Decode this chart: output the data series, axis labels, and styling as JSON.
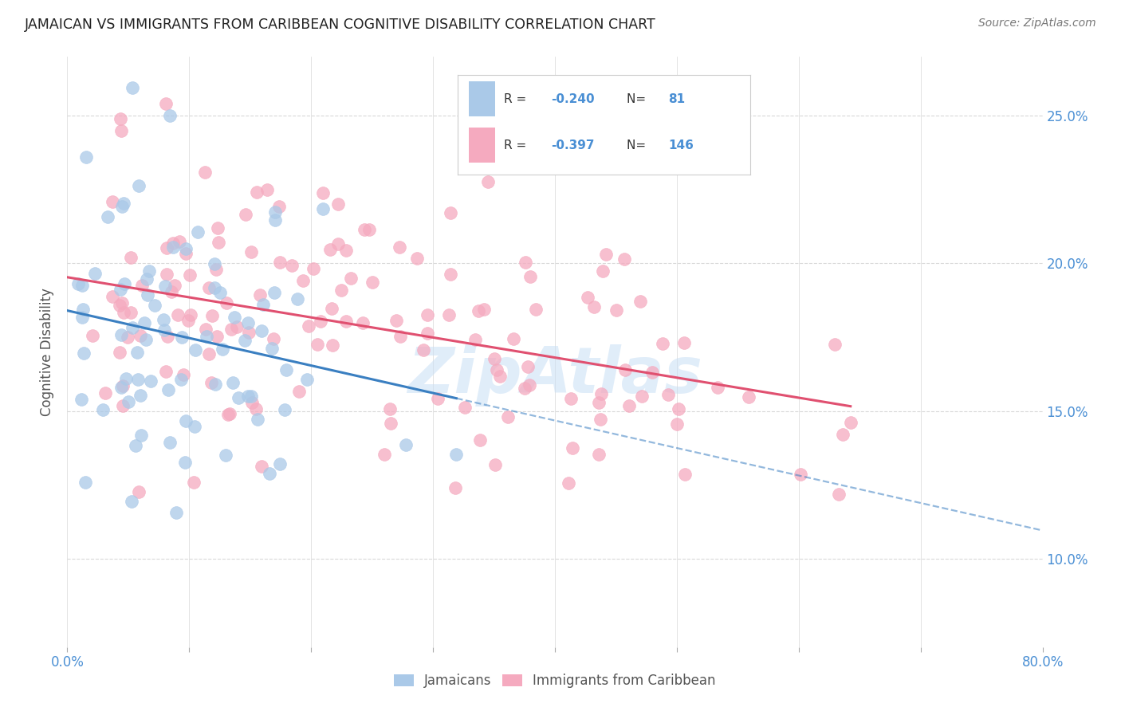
{
  "title": "JAMAICAN VS IMMIGRANTS FROM CARIBBEAN COGNITIVE DISABILITY CORRELATION CHART",
  "source": "Source: ZipAtlas.com",
  "ylabel": "Cognitive Disability",
  "xlim": [
    0.0,
    0.8
  ],
  "ylim": [
    0.07,
    0.27
  ],
  "yticks": [
    0.1,
    0.15,
    0.2,
    0.25
  ],
  "legend_labels": [
    "Jamaicans",
    "Immigrants from Caribbean"
  ],
  "r_jamaican": -0.24,
  "n_jamaican": 81,
  "r_caribbean": -0.397,
  "n_caribbean": 146,
  "color_jamaican": "#aac9e8",
  "color_caribbean": "#f5aabf",
  "line_color_jamaican": "#3a7fc1",
  "line_color_caribbean": "#e05070",
  "axis_label_color": "#4a8fd4",
  "title_color": "#222222",
  "background_color": "#ffffff",
  "grid_color": "#d8d8d8",
  "watermark": "ZipAtlas",
  "watermark_color": "#c8dff5"
}
